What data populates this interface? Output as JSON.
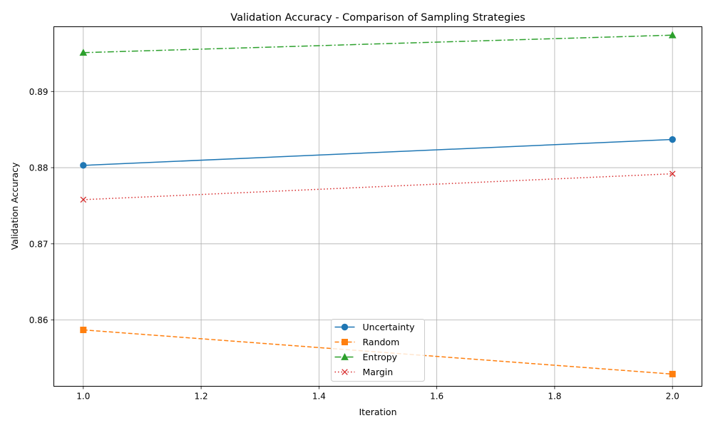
{
  "chart_data": {
    "type": "line",
    "title": "Validation Accuracy - Comparison of Sampling Strategies",
    "xlabel": "Iteration",
    "ylabel": "Validation Accuracy",
    "x": [
      1.0,
      2.0
    ],
    "xlim": [
      0.95,
      2.05
    ],
    "ylim": [
      0.8513,
      0.8985
    ],
    "xticks": [
      "1.0",
      "1.2",
      "1.4",
      "1.6",
      "1.8",
      "2.0"
    ],
    "yticks": [
      "0.86",
      "0.87",
      "0.88",
      "0.89"
    ],
    "grid": true,
    "legend_position": "lower center",
    "series": [
      {
        "name": "Uncertainty",
        "values": [
          0.8803,
          0.8837
        ],
        "color": "#1f77b4",
        "line_style": "solid",
        "marker": "circle"
      },
      {
        "name": "Random",
        "values": [
          0.8587,
          0.8529
        ],
        "color": "#ff7f0e",
        "line_style": "dashed",
        "marker": "square"
      },
      {
        "name": "Entropy",
        "values": [
          0.8951,
          0.8974
        ],
        "color": "#2ca02c",
        "line_style": "dashdot",
        "marker": "triangle"
      },
      {
        "name": "Margin",
        "values": [
          0.8758,
          0.8792
        ],
        "color": "#d62728",
        "line_style": "dotted",
        "marker": "x"
      }
    ]
  }
}
